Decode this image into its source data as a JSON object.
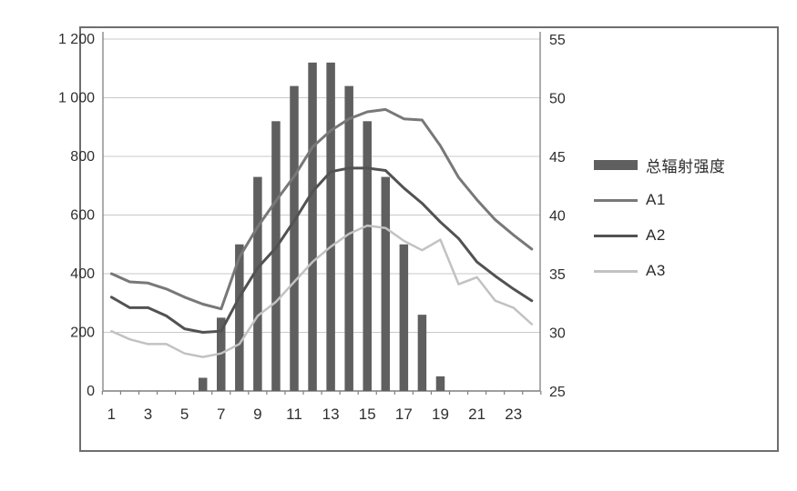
{
  "figure": {
    "background": "#ffffff",
    "frame_color": "#6e6e6e",
    "grid_color": "#c9c9c9",
    "axis_color": "#7f7f7f",
    "text_color": "#2f2f2f"
  },
  "chart_data": {
    "type": "combo-bar-line",
    "x_hours": [
      1,
      2,
      3,
      4,
      5,
      6,
      7,
      8,
      9,
      10,
      11,
      12,
      13,
      14,
      15,
      16,
      17,
      18,
      19,
      20,
      21,
      22,
      23,
      24
    ],
    "x_tick_labels": [
      "1",
      "3",
      "5",
      "7",
      "9",
      "11",
      "13",
      "15",
      "17",
      "19",
      "21",
      "23"
    ],
    "left_axis": {
      "min": 0,
      "max": 1200,
      "tick_step": 200,
      "tick_labels": [
        "0",
        "200",
        "400",
        "600",
        "800",
        "1 000",
        "1 200"
      ]
    },
    "right_axis": {
      "min": 25,
      "max": 55,
      "tick_step": 5,
      "tick_labels": [
        "25",
        "30",
        "35",
        "40",
        "45",
        "50",
        "55"
      ]
    },
    "bar_series": {
      "name": "总辐射强度",
      "axis": "left",
      "color": "#5f5f5f",
      "values": [
        0,
        0,
        0,
        0,
        0,
        45,
        250,
        500,
        730,
        920,
        1040,
        1120,
        1120,
        1040,
        920,
        730,
        500,
        260,
        50,
        0,
        0,
        0,
        0,
        0
      ]
    },
    "line_series": [
      {
        "name": "A1",
        "axis": "right",
        "color": "#787878",
        "width": 3,
        "values": [
          35.0,
          34.3,
          34.2,
          33.7,
          33.0,
          32.4,
          32.0,
          36.4,
          39.0,
          41.2,
          43.3,
          45.8,
          47.2,
          48.2,
          48.8,
          49.0,
          48.2,
          48.1,
          45.9,
          43.2,
          41.3,
          39.6,
          38.3,
          37.1
        ]
      },
      {
        "name": "A2",
        "axis": "right",
        "color": "#525252",
        "width": 3,
        "values": [
          33.0,
          32.1,
          32.1,
          31.4,
          30.3,
          30.0,
          30.1,
          33.0,
          35.5,
          37.2,
          39.5,
          42.0,
          43.7,
          44.0,
          44.0,
          43.8,
          42.3,
          41.0,
          39.4,
          38.0,
          36.0,
          34.8,
          33.7,
          32.7
        ]
      },
      {
        "name": "A3",
        "axis": "right",
        "color": "#c2c2c2",
        "width": 2.5,
        "values": [
          30.1,
          29.4,
          29.0,
          29.0,
          28.2,
          27.9,
          28.2,
          29.0,
          31.4,
          32.6,
          34.3,
          36.0,
          37.3,
          38.4,
          39.1,
          38.9,
          37.8,
          37.0,
          37.9,
          34.1,
          34.7,
          32.7,
          32.1,
          30.7
        ]
      }
    ],
    "grid": true,
    "legend_position": "right"
  }
}
